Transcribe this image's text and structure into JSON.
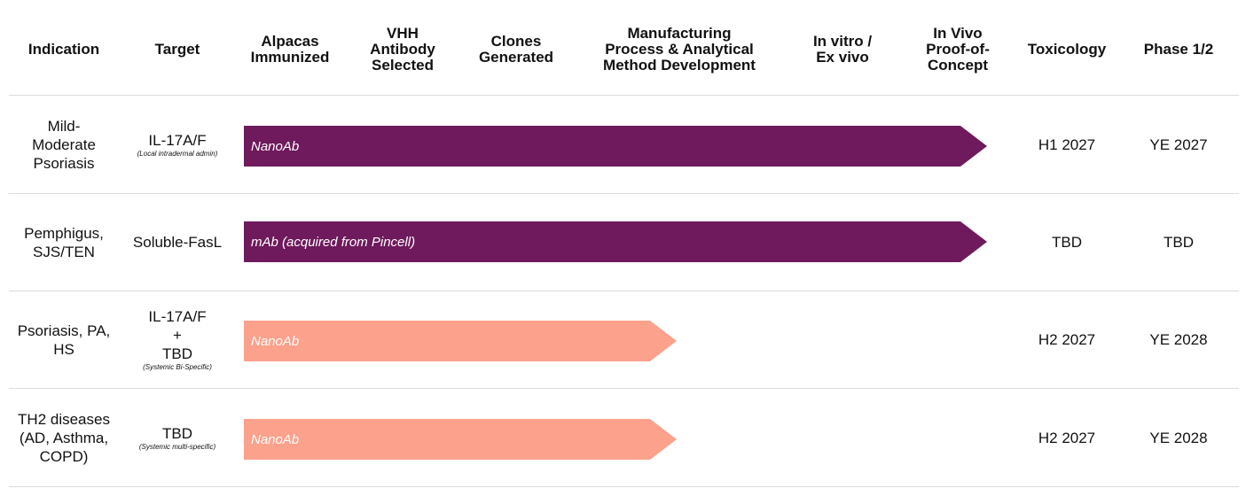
{
  "colors": {
    "advanced": "#6e1a5c",
    "early": "#fca18b",
    "divider": "#dcdcdc"
  },
  "headers": [
    {
      "lines": [
        "Indication"
      ]
    },
    {
      "lines": [
        "Target"
      ]
    },
    {
      "lines": [
        "Alpacas",
        "Immunized"
      ]
    },
    {
      "lines": [
        "VHH",
        "Antibody",
        "Selected"
      ]
    },
    {
      "lines": [
        "Clones",
        "Generated"
      ]
    },
    {
      "lines": [
        "Manufacturing",
        "Process & Analytical",
        "Method Development"
      ]
    },
    {
      "lines": [
        "In vitro /",
        "Ex vivo"
      ]
    },
    {
      "lines": [
        "In Vivo",
        "Proof-of-",
        "Concept"
      ]
    },
    {
      "lines": [
        "Toxicology"
      ]
    },
    {
      "lines": [
        "Phase 1/2"
      ]
    }
  ],
  "chart_data": {
    "type": "table",
    "title": "",
    "stages": [
      "Alpacas Immunized",
      "VHH Antibody Selected",
      "Clones Generated",
      "Manufacturing Process & Analytical Method Development",
      "In vitro / Ex vivo",
      "In Vivo Proof-of-Concept"
    ],
    "programs": [
      {
        "indication": [
          "Mild-",
          "Moderate",
          "Psoriasis"
        ],
        "target": [
          "IL-17A/F"
        ],
        "target_note": "(Local intradermal admin)",
        "bar_label": "NanoAb",
        "progress_stage": "In Vivo Proof-of-Concept",
        "progress_stage_count": 6,
        "bar_color": "advanced",
        "toxicology": "H1 2027",
        "phase12": "YE 2027"
      },
      {
        "indication": [
          "Pemphigus,",
          "SJS/TEN"
        ],
        "target": [
          "Soluble-FasL"
        ],
        "target_note": "",
        "bar_label": "mAb (acquired from Pincell)",
        "progress_stage": "In Vivo Proof-of-Concept",
        "progress_stage_count": 6,
        "bar_color": "advanced",
        "toxicology": "TBD",
        "phase12": "TBD"
      },
      {
        "indication": [
          "Psoriasis, PA,",
          "HS"
        ],
        "target": [
          "IL-17A/F",
          "+",
          "TBD"
        ],
        "target_note": "(Systemic Bi-Specific)",
        "bar_label": "NanoAb",
        "progress_stage": "Clones Generated",
        "progress_stage_count": 3.5,
        "bar_color": "early",
        "toxicology": "H2 2027",
        "phase12": "YE 2028"
      },
      {
        "indication": [
          "TH2 diseases",
          "(AD, Asthma,",
          "COPD)"
        ],
        "target": [
          "TBD"
        ],
        "target_note": "(Systemic multi-specific)",
        "bar_label": "NanoAb",
        "progress_stage": "Clones Generated",
        "progress_stage_count": 3.5,
        "bar_color": "early",
        "toxicology": "H2 2027",
        "phase12": "YE 2028"
      }
    ]
  }
}
